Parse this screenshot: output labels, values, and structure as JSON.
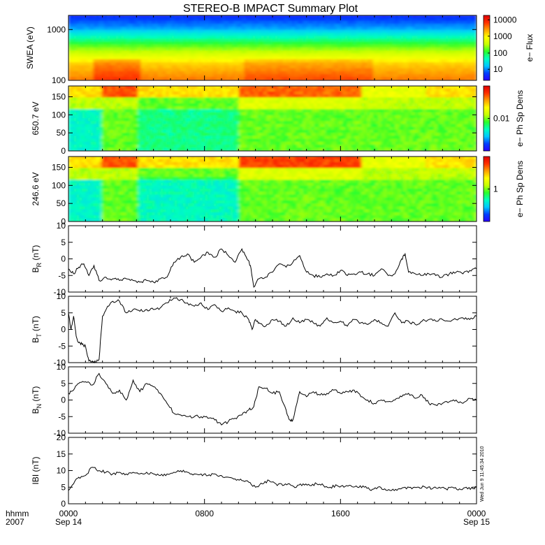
{
  "title": "STEREO-B IMPACT Summary Plot",
  "timestamp": "Wed Jun 9 11:45:34 2010",
  "colors": {
    "colormap": [
      "#2a00ff",
      "#0040ff",
      "#00c8ff",
      "#00ffc0",
      "#2aff2a",
      "#c8ff00",
      "#ffff00",
      "#ffa000",
      "#ff3000",
      "#e00000"
    ],
    "line": "#000000"
  },
  "x_axis": {
    "label_top": "hhmm",
    "label_bottom": "2007",
    "range_hours": [
      0,
      24
    ],
    "ticks": [
      {
        "label": "0000",
        "date": "Sep 14"
      },
      {
        "label": "0800",
        "date": ""
      },
      {
        "label": "1600",
        "date": ""
      },
      {
        "label": "0000",
        "date": "Sep 15"
      }
    ]
  },
  "chart_data": [
    {
      "type": "heatmap",
      "ylabel": "SWEA (eV)",
      "ylog": true,
      "ylim": [
        100,
        1900
      ],
      "yticks": [
        "100",
        "1000"
      ],
      "colorbar": {
        "label": "e− Flux",
        "scale": "log",
        "ticks": [
          "10",
          "100",
          "1000",
          "10000"
        ]
      },
      "description_bands": "high flux at low energy (~100-200 eV, red/orange), decreasing to blue above ~1500 eV"
    },
    {
      "type": "heatmap",
      "ylabel": "650.7 eV",
      "ylim": [
        0,
        180
      ],
      "yticks": [
        "0",
        "50",
        "100",
        "150"
      ],
      "colorbar": {
        "label": "e− Ph Sp Dens",
        "scale": "log",
        "ticks": [
          "0.01"
        ]
      }
    },
    {
      "type": "heatmap",
      "ylabel": "246.6 eV",
      "ylim": [
        0,
        180
      ],
      "yticks": [
        "0",
        "50",
        "100",
        "150"
      ],
      "colorbar": {
        "label": "e− Ph Sp Dens",
        "scale": "log",
        "ticks": [
          "1"
        ]
      }
    },
    {
      "type": "line",
      "ylabel": "B_R (nT)",
      "ylabel_main": "B",
      "ylabel_sub": "R",
      "ylabel_unit": "(nT)",
      "ylim": [
        -10,
        10
      ],
      "yticks": [
        "-10",
        "-5",
        "0",
        "5",
        "10"
      ],
      "x": [
        0,
        0.3,
        0.6,
        0.9,
        1.2,
        1.5,
        1.8,
        2.2,
        2.6,
        3.0,
        3.4,
        3.8,
        4.2,
        4.6,
        5.0,
        5.4,
        5.8,
        6.2,
        6.6,
        7.0,
        7.4,
        7.8,
        8.2,
        8.6,
        9.0,
        9.4,
        9.8,
        10.2,
        10.5,
        10.7,
        10.9,
        11.2,
        11.6,
        12.0,
        12.4,
        12.8,
        13.2,
        13.6,
        14.0,
        14.4,
        14.8,
        15.2,
        15.6,
        16.0,
        16.4,
        16.8,
        17.2,
        17.6,
        18.0,
        18.4,
        18.8,
        19.2,
        19.6,
        19.8,
        20.0,
        20.4,
        20.8,
        21.2,
        21.6,
        22.0,
        22.4,
        22.8,
        23.2,
        23.6,
        24.0
      ],
      "y": [
        -3,
        -4.5,
        -2.5,
        -1.5,
        -5,
        -2,
        -6.5,
        -5.5,
        -6,
        -6.5,
        -6,
        -6.5,
        -7,
        -6.5,
        -7,
        -6,
        -5.5,
        -1,
        0.5,
        1.5,
        -1,
        0.5,
        2,
        0.5,
        3,
        1,
        -1,
        3,
        0,
        -2,
        -8.5,
        -6,
        -5.5,
        -4,
        -1.5,
        -2.5,
        -1,
        1,
        -4,
        -5,
        -5.5,
        -4.5,
        -5,
        -3.5,
        -5,
        -4.5,
        -4,
        -4.5,
        -5,
        -3,
        -5,
        -4.5,
        0,
        1.5,
        -4,
        -4.5,
        -5,
        -4.5,
        -5,
        -5.5,
        -4.5,
        -4,
        -4.5,
        -3.5,
        -3
      ]
    },
    {
      "type": "line",
      "ylabel": "B_T (nT)",
      "ylabel_main": "B",
      "ylabel_sub": "T",
      "ylabel_unit": "(nT)",
      "ylim": [
        -10,
        10
      ],
      "yticks": [
        "-10",
        "-5",
        "0",
        "5",
        "10"
      ],
      "x": [
        0,
        0.15,
        0.3,
        0.45,
        0.6,
        0.8,
        1.0,
        1.2,
        1.4,
        1.6,
        1.8,
        2.0,
        2.3,
        2.6,
        3.0,
        3.4,
        3.8,
        4.2,
        4.6,
        5.0,
        5.4,
        5.8,
        6.2,
        6.6,
        7.0,
        7.4,
        7.8,
        8.2,
        8.6,
        9.0,
        9.4,
        9.8,
        10.2,
        10.6,
        10.8,
        11.0,
        11.2,
        11.6,
        12.0,
        12.4,
        12.8,
        13.2,
        13.6,
        14.0,
        14.4,
        14.8,
        15.2,
        15.6,
        16.0,
        16.4,
        16.8,
        17.2,
        17.6,
        18.0,
        18.4,
        18.8,
        19.2,
        19.6,
        20.0,
        20.4,
        20.8,
        21.2,
        21.6,
        22.0,
        22.4,
        22.8,
        23.2,
        23.6,
        24.0
      ],
      "y": [
        5,
        0,
        4,
        -2,
        -4,
        -4.5,
        -5,
        -9.5,
        -9.5,
        -10,
        -9,
        4,
        7,
        8.5,
        8.5,
        5,
        6,
        5.5,
        6,
        6,
        6.5,
        8,
        9.5,
        9,
        8,
        7,
        8,
        6,
        7.5,
        5.5,
        6.5,
        5.5,
        5,
        3,
        0,
        3,
        2,
        1,
        3,
        2.5,
        1,
        3.5,
        2,
        3,
        2,
        1,
        3.5,
        2,
        2.5,
        1,
        3,
        2,
        1.5,
        3,
        2,
        1,
        5,
        2,
        2.5,
        1.5,
        2.5,
        3,
        2.5,
        3,
        2.5,
        3,
        3.5,
        3,
        4
      ]
    },
    {
      "type": "line",
      "ylabel": "B_N (nT)",
      "ylabel_main": "B",
      "ylabel_sub": "N",
      "ylabel_unit": "(nT)",
      "ylim": [
        -10,
        10
      ],
      "yticks": [
        "-10",
        "-5",
        "0",
        "5",
        "10"
      ],
      "x": [
        0,
        0.3,
        0.6,
        1.0,
        1.4,
        1.8,
        2.2,
        2.6,
        3.0,
        3.4,
        3.8,
        4.2,
        4.6,
        5.0,
        5.4,
        5.8,
        6.2,
        6.6,
        7.0,
        7.4,
        7.8,
        8.2,
        8.6,
        9.0,
        9.4,
        9.8,
        10.2,
        10.6,
        10.9,
        11.2,
        11.6,
        12.0,
        12.4,
        12.8,
        13.0,
        13.2,
        13.6,
        14.0,
        14.4,
        14.8,
        15.2,
        15.6,
        16.0,
        16.4,
        16.8,
        17.2,
        17.6,
        18.0,
        18.4,
        18.8,
        19.2,
        19.6,
        20.0,
        20.4,
        20.8,
        21.2,
        21.6,
        22.0,
        22.4,
        22.8,
        23.2,
        23.6,
        24.0
      ],
      "y": [
        2,
        3,
        5,
        5.5,
        4.5,
        8,
        5,
        2,
        3,
        0,
        6,
        2.5,
        5,
        4,
        2,
        -1,
        -4,
        -4.5,
        -5,
        -5,
        -5,
        -5.5,
        -6,
        -7.5,
        -6.5,
        -5.5,
        -4.5,
        -3,
        -2,
        4,
        3.5,
        2,
        2.5,
        -3,
        -6,
        -6,
        2.5,
        1,
        2.5,
        1.5,
        2,
        3,
        2,
        2.5,
        3,
        1,
        0,
        -1,
        0,
        -0.5,
        0,
        1,
        2,
        0.5,
        1.5,
        -1,
        -1.5,
        -1,
        -0.5,
        0,
        -1,
        0.5,
        0
      ]
    },
    {
      "type": "line",
      "ylabel": "|B| (nT)",
      "ylabel_main": "IBI",
      "ylabel_sub": "",
      "ylabel_unit": "(nT)",
      "ylim": [
        0,
        20
      ],
      "yticks": [
        "0",
        "5",
        "10",
        "15",
        "20"
      ],
      "x": [
        0,
        0.3,
        0.6,
        1.0,
        1.4,
        1.8,
        2.2,
        2.6,
        3.0,
        3.4,
        3.8,
        4.2,
        4.6,
        5.0,
        5.4,
        5.8,
        6.2,
        6.6,
        7.0,
        7.4,
        7.8,
        8.2,
        8.6,
        9.0,
        9.4,
        9.8,
        10.2,
        10.6,
        11.0,
        11.4,
        11.8,
        12.2,
        12.6,
        13.0,
        13.4,
        13.8,
        14.2,
        14.6,
        15.0,
        15.4,
        15.8,
        16.2,
        16.6,
        17.0,
        17.4,
        17.8,
        18.2,
        18.6,
        19.0,
        19.4,
        19.8,
        20.2,
        20.6,
        21.0,
        21.4,
        21.8,
        22.2,
        22.6,
        23.0,
        23.4,
        23.8,
        24.0
      ],
      "y": [
        4,
        6,
        8,
        8.5,
        11,
        10,
        9.5,
        9,
        9.5,
        9,
        9.5,
        9,
        9.5,
        9,
        8.5,
        9,
        9.5,
        10,
        9.5,
        9,
        9,
        8.5,
        9,
        8.5,
        8,
        7.5,
        7,
        6.5,
        5,
        6,
        7,
        6,
        5.5,
        6,
        5,
        6,
        5.5,
        6,
        5.5,
        5,
        5.5,
        5,
        5.5,
        5,
        5,
        4,
        5,
        4.5,
        4,
        4.5,
        5,
        4.5,
        5,
        5,
        4.5,
        5,
        4.5,
        5,
        4.5,
        5,
        4.5,
        5
      ]
    }
  ]
}
